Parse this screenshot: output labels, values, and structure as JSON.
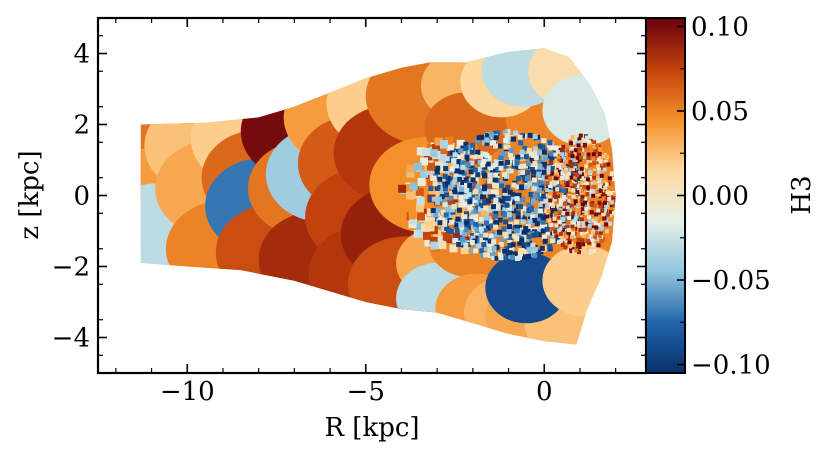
{
  "chart_data": {
    "type": "heatmap",
    "title": "",
    "xlabel": "R [kpc]",
    "ylabel": "z [kpc]",
    "xlim": [
      -12.5,
      2.85
    ],
    "ylim": [
      -5,
      5
    ],
    "x_ticks": [
      -10,
      -5,
      0
    ],
    "x_tick_labels": [
      "−10",
      "−5",
      "0"
    ],
    "y_ticks": [
      -4,
      -2,
      0,
      2,
      4
    ],
    "y_tick_labels": [
      "−4",
      "−2",
      "0",
      "2",
      "4"
    ],
    "grid": false,
    "colorbar": {
      "label": "H3",
      "range": [
        -0.105,
        0.105
      ],
      "ticks": [
        -0.1,
        -0.05,
        0.0,
        0.05,
        0.1
      ],
      "tick_labels": [
        "−0.10",
        "−0.05",
        "0.00",
        "0.05",
        "0.10"
      ],
      "colormap_stops": [
        "#08306b",
        "#2166ac",
        "#92c5de",
        "#e6f0e8",
        "#fdd9a0",
        "#f4902a",
        "#c2410c",
        "#67000d"
      ]
    },
    "map": {
      "outline": [
        [
          -11.3,
          2.0
        ],
        [
          -9.5,
          2.05
        ],
        [
          -8.0,
          2.2
        ],
        [
          -7.0,
          2.5
        ],
        [
          -6.0,
          2.9
        ],
        [
          -5.0,
          3.3
        ],
        [
          -4.0,
          3.6
        ],
        [
          -3.2,
          3.75
        ],
        [
          -2.2,
          3.75
        ],
        [
          -1.0,
          4.05
        ],
        [
          0.0,
          4.15
        ],
        [
          0.7,
          3.9
        ],
        [
          1.3,
          3.1
        ],
        [
          1.7,
          2.3
        ],
        [
          1.9,
          1.3
        ],
        [
          2.0,
          0.0
        ],
        [
          1.9,
          -1.3
        ],
        [
          1.6,
          -2.3
        ],
        [
          1.2,
          -3.2
        ],
        [
          0.9,
          -4.2
        ],
        [
          0.0,
          -4.1
        ],
        [
          -1.0,
          -3.9
        ],
        [
          -2.0,
          -3.6
        ],
        [
          -3.0,
          -3.3
        ],
        [
          -4.0,
          -3.2
        ],
        [
          -5.0,
          -3.0
        ],
        [
          -6.0,
          -2.7
        ],
        [
          -7.0,
          -2.4
        ],
        [
          -8.5,
          -2.1
        ],
        [
          -10.0,
          -2.0
        ],
        [
          -11.3,
          -1.9
        ]
      ],
      "regions": [
        {
          "x": -11.0,
          "z": 1.3,
          "value": 0.055
        },
        {
          "x": -10.9,
          "z": 0.0,
          "value": 0.04
        },
        {
          "x": -10.8,
          "z": -1.0,
          "value": -0.03
        },
        {
          "x": -9.6,
          "z": 1.4,
          "value": 0.025
        },
        {
          "x": -9.3,
          "z": 0.2,
          "value": 0.035
        },
        {
          "x": -9.0,
          "z": -1.5,
          "value": 0.05
        },
        {
          "x": -8.3,
          "z": 1.6,
          "value": 0.02
        },
        {
          "x": -8.0,
          "z": 0.5,
          "value": 0.06
        },
        {
          "x": -7.9,
          "z": -0.3,
          "value": -0.07
        },
        {
          "x": -7.6,
          "z": -1.6,
          "value": 0.07
        },
        {
          "x": -6.9,
          "z": 1.8,
          "value": 0.1
        },
        {
          "x": -6.7,
          "z": 0.2,
          "value": 0.055
        },
        {
          "x": -6.4,
          "z": -1.8,
          "value": 0.085
        },
        {
          "x": -6.2,
          "z": 0.6,
          "value": -0.04
        },
        {
          "x": -5.7,
          "z": 2.2,
          "value": 0.04
        },
        {
          "x": -5.3,
          "z": 0.9,
          "value": 0.065
        },
        {
          "x": -5.1,
          "z": -0.6,
          "value": 0.075
        },
        {
          "x": -5.0,
          "z": -2.2,
          "value": 0.08
        },
        {
          "x": -4.5,
          "z": 2.6,
          "value": 0.02
        },
        {
          "x": -4.3,
          "z": 1.2,
          "value": 0.08
        },
        {
          "x": -4.1,
          "z": -1.1,
          "value": 0.09
        },
        {
          "x": -3.9,
          "z": -2.5,
          "value": 0.07
        },
        {
          "x": -3.4,
          "z": 2.8,
          "value": 0.055
        },
        {
          "x": -3.3,
          "z": 0.3,
          "value": 0.045
        },
        {
          "x": -3.0,
          "z": -1.9,
          "value": 0.035
        },
        {
          "x": -3.0,
          "z": -2.9,
          "value": -0.03
        },
        {
          "x": -2.3,
          "z": 3.1,
          "value": 0.03
        },
        {
          "x": -2.2,
          "z": 1.9,
          "value": 0.06
        },
        {
          "x": -2.1,
          "z": -1.3,
          "value": 0.05
        },
        {
          "x": -1.9,
          "z": -3.2,
          "value": 0.04
        },
        {
          "x": -1.2,
          "z": 3.2,
          "value": 0.015
        },
        {
          "x": -1.1,
          "z": -3.3,
          "value": 0.03
        },
        {
          "x": -0.6,
          "z": 3.5,
          "value": -0.03
        },
        {
          "x": -0.5,
          "z": -3.4,
          "value": 0.035
        },
        {
          "x": 0.7,
          "z": 3.5,
          "value": 0.01
        },
        {
          "x": 0.6,
          "z": -3.6,
          "value": 0.025
        },
        {
          "x": -0.5,
          "z": -2.6,
          "value": -0.09
        },
        {
          "x": 1.1,
          "z": 2.4,
          "value": -0.02
        },
        {
          "x": 1.1,
          "z": -2.4,
          "value": 0.02
        }
      ],
      "core": {
        "x": -1.0,
        "z": 0.0,
        "rx": 2.2,
        "rz": 1.8,
        "value": -0.06
      },
      "core_right": {
        "x": 1.0,
        "z": 0.0,
        "rx": 1.0,
        "rz": 1.7,
        "value": 0.04
      }
    }
  }
}
